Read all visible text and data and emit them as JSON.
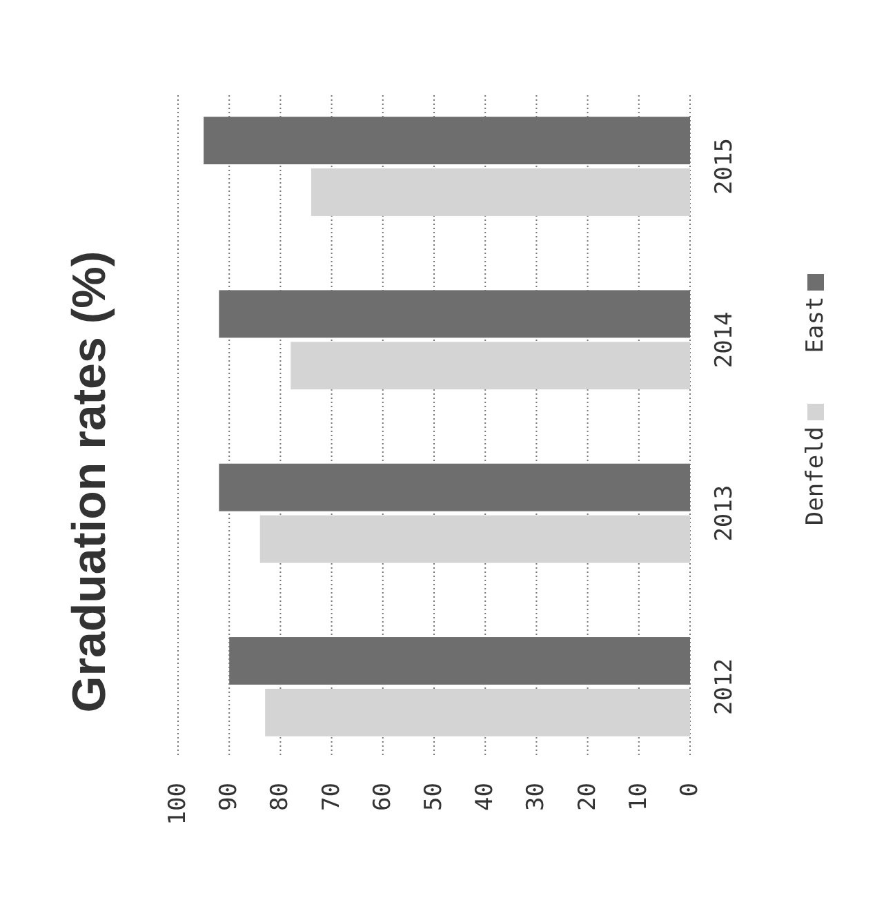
{
  "chart_data": {
    "type": "bar",
    "orientation": "horizontal",
    "title": "Graduation rates (%)",
    "categories": [
      "2015",
      "2014",
      "2013",
      "2012"
    ],
    "series": [
      {
        "name": "East",
        "color": "#6e6e6e",
        "values": [
          95,
          92,
          92,
          90
        ]
      },
      {
        "name": "Denfeld",
        "color": "#d4d4d4",
        "values": [
          74,
          78,
          84,
          83
        ]
      }
    ],
    "xlim": [
      100,
      0
    ],
    "xticks": [
      100,
      90,
      80,
      70,
      60,
      50,
      40,
      30,
      20,
      10,
      0
    ],
    "grid": "x",
    "legend": "right"
  }
}
